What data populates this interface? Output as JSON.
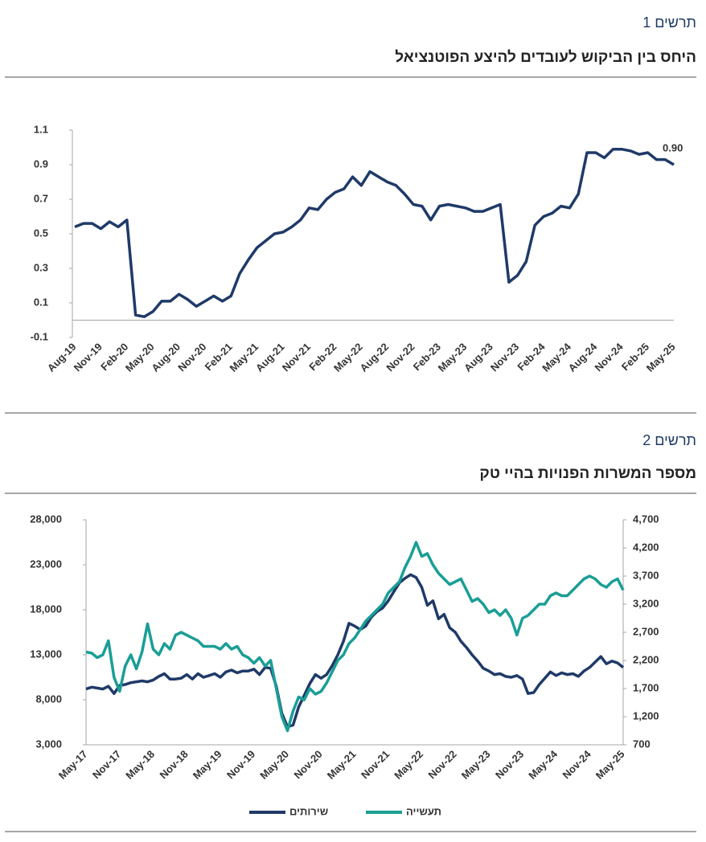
{
  "chart_data": [
    {
      "type": "line",
      "figure_label": "תרשים 1",
      "title": "היחס בין הביקוש לעובדים להיצע הפוטנציאל",
      "categories": [
        "Aug-19",
        null,
        null,
        "Nov-19",
        null,
        null,
        "Feb-20",
        null,
        null,
        "May-20",
        null,
        null,
        "Aug-20",
        null,
        null,
        "Nov-20",
        null,
        null,
        "Feb-21",
        null,
        null,
        "May-21",
        null,
        null,
        "Aug-21",
        null,
        null,
        "Nov-21",
        null,
        null,
        "Feb-22",
        null,
        null,
        "May-22",
        null,
        null,
        "Aug-22",
        null,
        null,
        "Nov-22",
        null,
        null,
        "Feb-23",
        null,
        null,
        "May-23",
        null,
        null,
        "Aug-23",
        null,
        null,
        "Nov-23",
        null,
        null,
        "Feb-24",
        null,
        null,
        "May-24",
        null,
        null,
        "Aug-24",
        null,
        null,
        "Nov-24",
        null,
        null,
        "Feb-25",
        null,
        null,
        "May-25"
      ],
      "series": [
        {
          "name": null,
          "color": "#1f3a68",
          "values": [
            0.54,
            0.56,
            0.56,
            0.53,
            0.57,
            0.54,
            0.58,
            0.03,
            0.02,
            0.05,
            0.11,
            0.11,
            0.15,
            0.12,
            0.08,
            0.11,
            0.14,
            0.11,
            0.14,
            0.27,
            0.35,
            0.42,
            0.46,
            0.5,
            0.51,
            0.54,
            0.58,
            0.65,
            0.64,
            0.7,
            0.74,
            0.76,
            0.83,
            0.78,
            0.86,
            0.83,
            0.8,
            0.78,
            0.73,
            0.67,
            0.66,
            0.58,
            0.66,
            0.67,
            0.66,
            0.65,
            0.63,
            0.63,
            0.65,
            0.67,
            0.22,
            0.26,
            0.34,
            0.55,
            0.6,
            0.62,
            0.66,
            0.65,
            0.73,
            0.97,
            0.97,
            0.94,
            0.99,
            0.99,
            0.98,
            0.96,
            0.97,
            0.93,
            0.93,
            0.9
          ],
          "value_labels": [
            null,
            null,
            null,
            null,
            null,
            null,
            null,
            null,
            null,
            null,
            null,
            null,
            null,
            null,
            null,
            null,
            null,
            null,
            null,
            null,
            null,
            null,
            null,
            null,
            null,
            null,
            null,
            null,
            null,
            null,
            null,
            null,
            null,
            null,
            null,
            null,
            null,
            null,
            null,
            null,
            null,
            null,
            null,
            null,
            null,
            null,
            null,
            null,
            null,
            null,
            null,
            null,
            null,
            null,
            null,
            null,
            null,
            null,
            null,
            null,
            null,
            null,
            null,
            null,
            null,
            null,
            null,
            null,
            null,
            "0.90"
          ]
        }
      ],
      "ylim": [
        -0.1,
        1.1
      ],
      "yticks": [
        -0.1,
        0.1,
        0.3,
        0.5,
        0.7,
        0.9,
        1.1
      ],
      "grid": false,
      "legend": false
    },
    {
      "type": "line",
      "figure_label": "תרשים 2",
      "title": "מספר המשרות הפנויות בהיי טק",
      "categories": [
        "May-17",
        null,
        null,
        null,
        null,
        null,
        "Nov-17",
        null,
        null,
        null,
        null,
        null,
        "May-18",
        null,
        null,
        null,
        null,
        null,
        "Nov-18",
        null,
        null,
        null,
        null,
        null,
        "May-19",
        null,
        null,
        null,
        null,
        null,
        "Nov-19",
        null,
        null,
        null,
        null,
        null,
        "May-20",
        null,
        null,
        null,
        null,
        null,
        "Nov-20",
        null,
        null,
        null,
        null,
        null,
        "May-21",
        null,
        null,
        null,
        null,
        null,
        "Nov-21",
        null,
        null,
        null,
        null,
        null,
        "May-22",
        null,
        null,
        null,
        null,
        null,
        "Nov-22",
        null,
        null,
        null,
        null,
        null,
        "May-23",
        null,
        null,
        null,
        null,
        null,
        "Nov-23",
        null,
        null,
        null,
        null,
        null,
        "May-24",
        null,
        null,
        null,
        null,
        null,
        "Nov-24",
        null,
        null,
        null,
        null,
        null,
        "May-25"
      ],
      "series": [
        {
          "name": "שירותים",
          "color": "#1f3a68",
          "axis": "y",
          "values": [
            9200,
            9400,
            9300,
            9200,
            9500,
            8700,
            9600,
            9700,
            9900,
            10000,
            10100,
            10000,
            10200,
            10600,
            10900,
            10300,
            10300,
            10400,
            10800,
            10300,
            10900,
            10500,
            10700,
            10900,
            10500,
            11100,
            11300,
            11000,
            11200,
            11200,
            11400,
            10800,
            11600,
            11500,
            9500,
            6500,
            5000,
            5200,
            7200,
            8500,
            9800,
            10800,
            10400,
            10800,
            11800,
            13000,
            14500,
            16500,
            16200,
            15800,
            16200,
            17200,
            17800,
            18200,
            19000,
            20000,
            21000,
            21500,
            21900,
            21600,
            20500,
            18500,
            19000,
            17000,
            17500,
            16000,
            15500,
            14500,
            13800,
            13000,
            12300,
            11500,
            11200,
            10800,
            10900,
            10600,
            10500,
            10700,
            10300,
            8700,
            8800,
            9700,
            10400,
            11100,
            10700,
            11000,
            10800,
            10900,
            10600,
            11200,
            11600,
            12200,
            12800,
            12000,
            12300,
            12100,
            11600
          ]
        },
        {
          "name": "תעשייה",
          "color": "#1a9e96",
          "axis": "y2",
          "values": [
            2350,
            2330,
            2250,
            2300,
            2550,
            1900,
            1650,
            2100,
            2300,
            2050,
            2350,
            2850,
            2400,
            2300,
            2500,
            2400,
            2650,
            2700,
            2650,
            2600,
            2550,
            2450,
            2450,
            2450,
            2400,
            2500,
            2400,
            2450,
            2300,
            2250,
            2150,
            2250,
            2100,
            2200,
            1700,
            1200,
            950,
            1300,
            1550,
            1500,
            1700,
            1600,
            1650,
            1800,
            2000,
            2200,
            2300,
            2500,
            2600,
            2750,
            2900,
            3000,
            3100,
            3200,
            3400,
            3500,
            3600,
            3850,
            4050,
            4300,
            4050,
            4100,
            3900,
            3750,
            3650,
            3550,
            3600,
            3650,
            3450,
            3250,
            3300,
            3200,
            3050,
            3100,
            3000,
            3100,
            2950,
            2650,
            2950,
            3000,
            3100,
            3200,
            3200,
            3350,
            3400,
            3350,
            3350,
            3450,
            3550,
            3650,
            3700,
            3650,
            3550,
            3500,
            3600,
            3650,
            3450
          ]
        }
      ],
      "ylim": [
        3000,
        28000
      ],
      "yticks": [
        {
          "value": 3000,
          "label": "3,000"
        },
        {
          "value": 8000,
          "label": "8,000"
        },
        {
          "value": 13000,
          "label": "13,000"
        },
        {
          "value": 18000,
          "label": "18,000"
        },
        {
          "value": 23000,
          "label": "23,000"
        },
        {
          "value": 28000,
          "label": "28,000"
        }
      ],
      "y2lim": [
        700,
        4700
      ],
      "y2ticks": [
        700,
        {
          "value": 1200,
          "label": "1,200"
        },
        {
          "value": 1700,
          "label": "1,700"
        },
        {
          "value": 2200,
          "label": "2,200"
        },
        {
          "value": 2700,
          "label": "2,700"
        },
        {
          "value": 3200,
          "label": "3,200"
        },
        {
          "value": 3700,
          "label": "3,700"
        },
        {
          "value": 4200,
          "label": "4,200"
        },
        {
          "value": 4700,
          "label": "4,700"
        }
      ],
      "grid": false,
      "legend": "bottom"
    }
  ]
}
